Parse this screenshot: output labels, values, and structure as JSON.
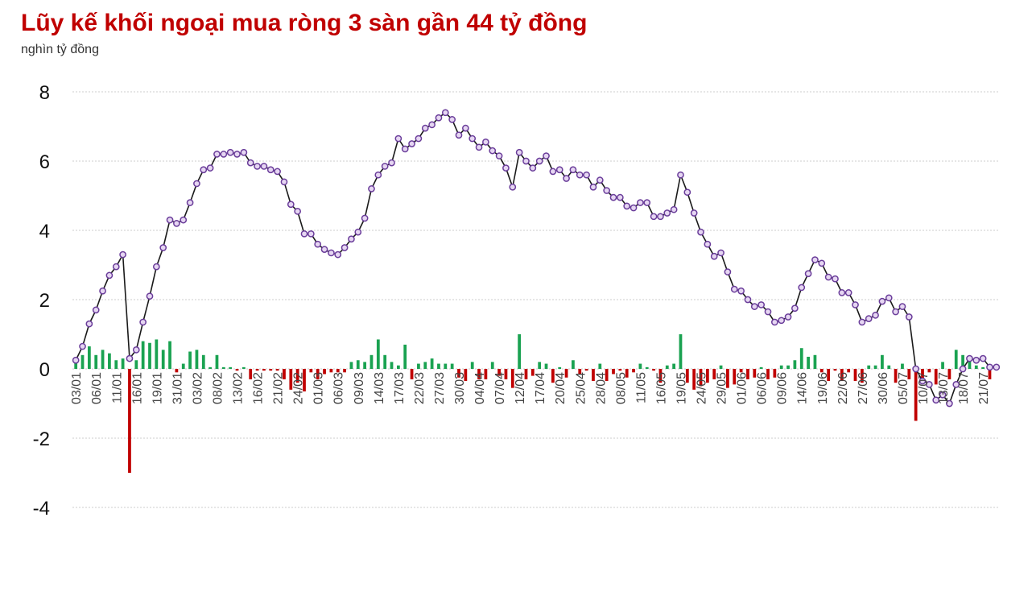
{
  "title": "Lũy kế khối ngoại mua ròng 3 sàn gần 44 tỷ đồng",
  "subtitle": "nghìn tỷ đồng",
  "colors": {
    "title": "#c00000",
    "line": "#1a1a1a",
    "marker_fill": "#e6d6f2",
    "marker_stroke": "#6a3d9a",
    "bar_positive": "#1aa251",
    "bar_negative": "#c00000",
    "grid": "#cccccc"
  },
  "chart_data": {
    "type": "bar+line",
    "ylim": [
      -4,
      8
    ],
    "yticks": [
      8,
      6,
      4,
      2,
      0,
      -2,
      -4
    ],
    "grid": true,
    "x_tick_labels": [
      "03/01",
      "06/01",
      "11/01",
      "16/01",
      "19/01",
      "31/01",
      "03/02",
      "08/02",
      "13/02",
      "16/02",
      "21/02",
      "24/02",
      "01/03",
      "06/03",
      "09/03",
      "14/03",
      "17/03",
      "22/03",
      "27/03",
      "30/03",
      "04/04",
      "07/04",
      "12/04",
      "17/04",
      "20/04",
      "25/04",
      "28/04",
      "08/05",
      "11/05",
      "16/05",
      "19/05",
      "24/05",
      "29/05",
      "01/06",
      "06/06",
      "09/06",
      "14/06",
      "19/06",
      "22/06",
      "27/06",
      "30/06",
      "05/07",
      "10/07",
      "13/07",
      "18/07",
      "21/07"
    ],
    "tick_every": 3,
    "series": [
      {
        "kind": "bar",
        "values": [
          0.25,
          0.4,
          0.65,
          0.4,
          0.55,
          0.45,
          0.25,
          0.3,
          -3.0,
          0.25,
          0.8,
          0.75,
          0.85,
          0.55,
          0.8,
          -0.1,
          0.15,
          0.5,
          0.55,
          0.4,
          0.05,
          0.4,
          0.05,
          0.05,
          -0.05,
          0.05,
          -0.3,
          -0.05,
          -0.05,
          -0.05,
          -0.05,
          -0.3,
          -0.6,
          -0.4,
          -0.65,
          -0.1,
          -0.3,
          -0.15,
          -0.1,
          -0.1,
          -0.1,
          0.2,
          0.25,
          0.2,
          0.4,
          0.85,
          0.4,
          0.2,
          0.1,
          0.7,
          -0.3,
          0.15,
          0.2,
          0.3,
          0.15,
          0.15,
          0.15,
          -0.25,
          -0.35,
          0.2,
          -0.3,
          -0.3,
          0.2,
          -0.2,
          -0.3,
          -0.55,
          1.0,
          -0.3,
          -0.2,
          0.2,
          0.15,
          -0.4,
          0.05,
          -0.25,
          0.25,
          -0.15,
          -0.05,
          -0.35,
          0.15,
          -0.35,
          -0.15,
          -0.05,
          -0.25,
          -0.1,
          0.15,
          0.05,
          -0.05,
          -0.4,
          0.1,
          0.15,
          1.0,
          -0.4,
          -0.6,
          -0.5,
          -0.4,
          -0.3,
          0.1,
          -0.55,
          -0.45,
          -0.1,
          -0.3,
          -0.25,
          0.05,
          -0.3,
          -0.25,
          0.1,
          0.1,
          0.25,
          0.6,
          0.35,
          0.4,
          -0.1,
          -0.35,
          -0.05,
          -0.35,
          -0.1,
          -0.35,
          -0.4,
          0.1,
          0.1,
          0.4,
          0.1,
          -0.4,
          0.15,
          -0.3,
          -1.5,
          -0.3,
          -0.1,
          -0.45,
          0.2,
          -0.3,
          0.55,
          0.4,
          0.3,
          0.1,
          0.05,
          -0.3,
          0.05
        ]
      },
      {
        "kind": "line",
        "values": [
          0.25,
          0.65,
          1.3,
          1.7,
          2.25,
          2.7,
          2.95,
          3.3,
          0.3,
          0.55,
          1.35,
          2.1,
          2.95,
          3.5,
          4.3,
          4.2,
          4.3,
          4.8,
          5.35,
          5.75,
          5.8,
          6.2,
          6.2,
          6.25,
          6.2,
          6.25,
          5.95,
          5.85,
          5.85,
          5.75,
          5.7,
          5.4,
          4.75,
          4.55,
          3.9,
          3.9,
          3.6,
          3.45,
          3.35,
          3.3,
          3.5,
          3.75,
          3.95,
          4.35,
          5.2,
          5.6,
          5.85,
          5.95,
          6.65,
          6.35,
          6.5,
          6.65,
          6.95,
          7.05,
          7.25,
          7.4,
          7.2,
          6.75,
          6.95,
          6.65,
          6.4,
          6.55,
          6.3,
          6.15,
          5.8,
          5.25,
          6.25,
          6.0,
          5.8,
          6.0,
          6.15,
          5.7,
          5.75,
          5.5,
          5.75,
          5.6,
          5.6,
          5.25,
          5.45,
          5.15,
          4.95,
          4.95,
          4.7,
          4.65,
          4.8,
          4.8,
          4.4,
          4.4,
          4.5,
          4.6,
          5.6,
          5.1,
          4.5,
          3.95,
          3.6,
          3.25,
          3.35,
          2.8,
          2.3,
          2.25,
          2.0,
          1.8,
          1.85,
          1.65,
          1.35,
          1.4,
          1.5,
          1.75,
          2.35,
          2.75,
          3.15,
          3.05,
          2.65,
          2.6,
          2.2,
          2.2,
          1.85,
          1.35,
          1.45,
          1.55,
          1.95,
          2.05,
          1.65,
          1.8,
          1.5,
          0.0,
          -0.35,
          -0.45,
          -0.9,
          -0.75,
          -1.0,
          -0.45,
          0.0,
          0.3,
          0.25,
          0.3,
          0.05,
          0.05
        ]
      }
    ]
  }
}
